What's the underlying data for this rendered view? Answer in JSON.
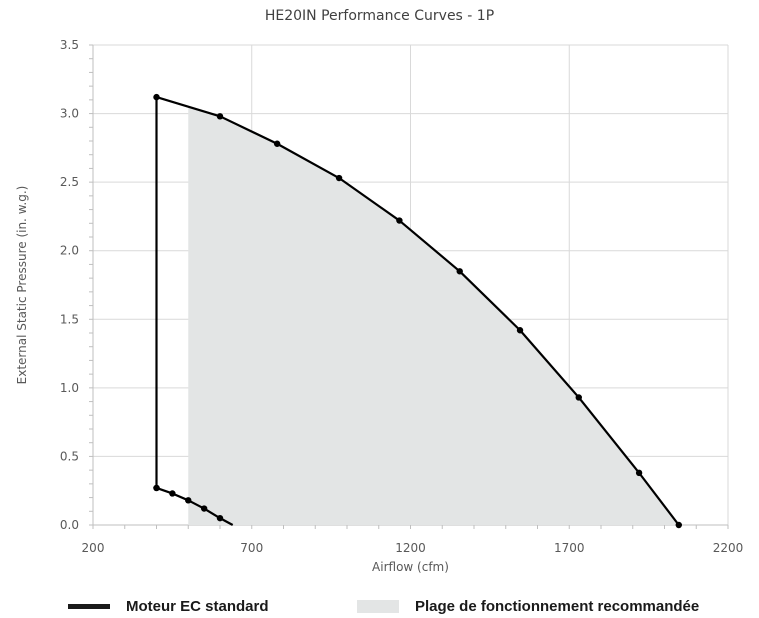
{
  "chart_data": {
    "type": "line",
    "title": "HE20IN Performance Curves - 1P",
    "xlabel": "Airflow (cfm)",
    "ylabel": "External Static Pressure (in. w.g.)",
    "xlim": [
      200,
      2200
    ],
    "ylim": [
      0,
      3.5
    ],
    "x_ticks": [
      200,
      700,
      1200,
      1700,
      2200
    ],
    "y_ticks": [
      0.0,
      0.5,
      1.0,
      1.5,
      2.0,
      2.5,
      3.0,
      3.5
    ],
    "x_tick_labels": [
      "200",
      "700",
      "1200",
      "1700",
      "2200"
    ],
    "y_tick_labels": [
      "0.0",
      "0.5",
      "1.0",
      "1.5",
      "2.0",
      "2.5",
      "3.0",
      "3.5"
    ],
    "grid": true,
    "legend_position": "bottom",
    "series": [
      {
        "name": "Moteur EC standard",
        "kind": "line",
        "color": "#000000",
        "points": [
          [
            400,
            0.27
          ],
          [
            400,
            3.12
          ],
          [
            600,
            2.98
          ],
          [
            780,
            2.78
          ],
          [
            975,
            2.53
          ],
          [
            1165,
            2.22
          ],
          [
            1355,
            1.85
          ],
          [
            1545,
            1.42
          ],
          [
            1730,
            0.93
          ],
          [
            1920,
            0.38
          ],
          [
            2045,
            0.0
          ]
        ],
        "lower_points": [
          [
            400,
            0.27
          ],
          [
            450,
            0.23
          ],
          [
            500,
            0.18
          ],
          [
            550,
            0.12
          ],
          [
            600,
            0.05
          ],
          [
            640,
            0.0
          ]
        ]
      },
      {
        "name": "Plage de fonctionnement recommandée",
        "kind": "area",
        "color": "#e3e5e5",
        "points": [
          [
            500,
            0.0
          ],
          [
            500,
            3.05
          ],
          [
            600,
            2.98
          ],
          [
            780,
            2.78
          ],
          [
            975,
            2.53
          ],
          [
            1165,
            2.22
          ],
          [
            1355,
            1.85
          ],
          [
            1545,
            1.42
          ],
          [
            1730,
            0.93
          ],
          [
            1920,
            0.38
          ],
          [
            2045,
            0.0
          ]
        ]
      }
    ]
  }
}
